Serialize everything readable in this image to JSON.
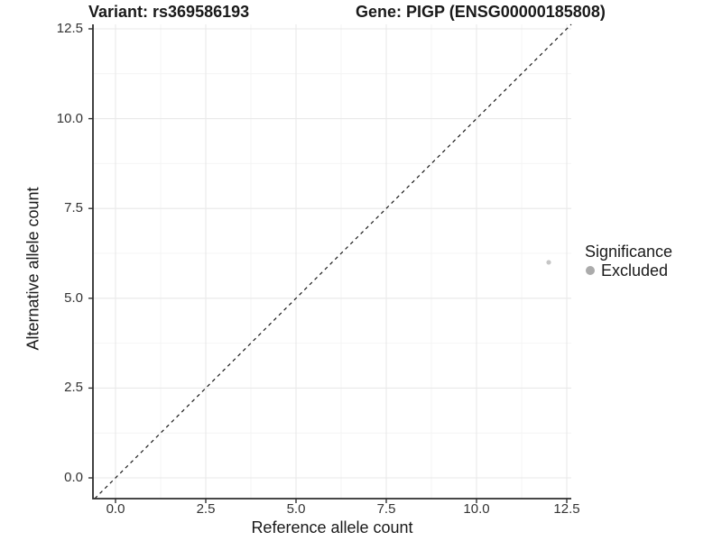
{
  "titles": {
    "variant": "Variant: rs369586193",
    "gene": "Gene: PIGP (ENSG00000185808)"
  },
  "axes": {
    "x": {
      "label": "Reference allele count",
      "tick_labels": [
        "0.0",
        "2.5",
        "5.0",
        "7.5",
        "10.0",
        "12.5"
      ],
      "tick_values": [
        0,
        2.5,
        5,
        7.5,
        10,
        12.5
      ]
    },
    "y": {
      "label": "Alternative allele count",
      "tick_labels": [
        "0.0",
        "2.5",
        "5.0",
        "7.5",
        "10.0",
        "12.5"
      ],
      "tick_values": [
        0,
        2.5,
        5,
        7.5,
        10,
        12.5
      ]
    }
  },
  "legend": {
    "title": "Significance",
    "items": [
      {
        "label": "Excluded",
        "color": "#ababab",
        "shape": "circle"
      }
    ]
  },
  "chart_data": {
    "type": "scatter",
    "title": "Variant: rs369586193    Gene: PIGP (ENSG00000185808)",
    "xlabel": "Reference allele count",
    "ylabel": "Alternative allele count",
    "xlim": [
      -0.625,
      12.625
    ],
    "ylim": [
      -0.58,
      12.63
    ],
    "xticks": [
      0,
      2.5,
      5,
      7.5,
      10,
      12.5
    ],
    "yticks": [
      0,
      2.5,
      5,
      7.5,
      10,
      12.5
    ],
    "grid": "on",
    "legend_position": "right",
    "series": [
      {
        "name": "Excluded",
        "color": "#c6c6c6",
        "points": [
          {
            "x": 12,
            "y": 6
          }
        ]
      }
    ],
    "reference_line": {
      "type": "abline",
      "slope": 1,
      "intercept": 0,
      "style": "dashed",
      "color": "#1a1a1a"
    }
  },
  "colors": {
    "background": "#ffffff",
    "major_grid": "#e9e9e9",
    "minor_grid": "#f4f4f4",
    "axis_line": "#2e2e2e",
    "tick_mark": "#333333",
    "point": "#c6c6c6",
    "legend_dot": "#ababab",
    "ref_line": "#1a1a1a"
  }
}
